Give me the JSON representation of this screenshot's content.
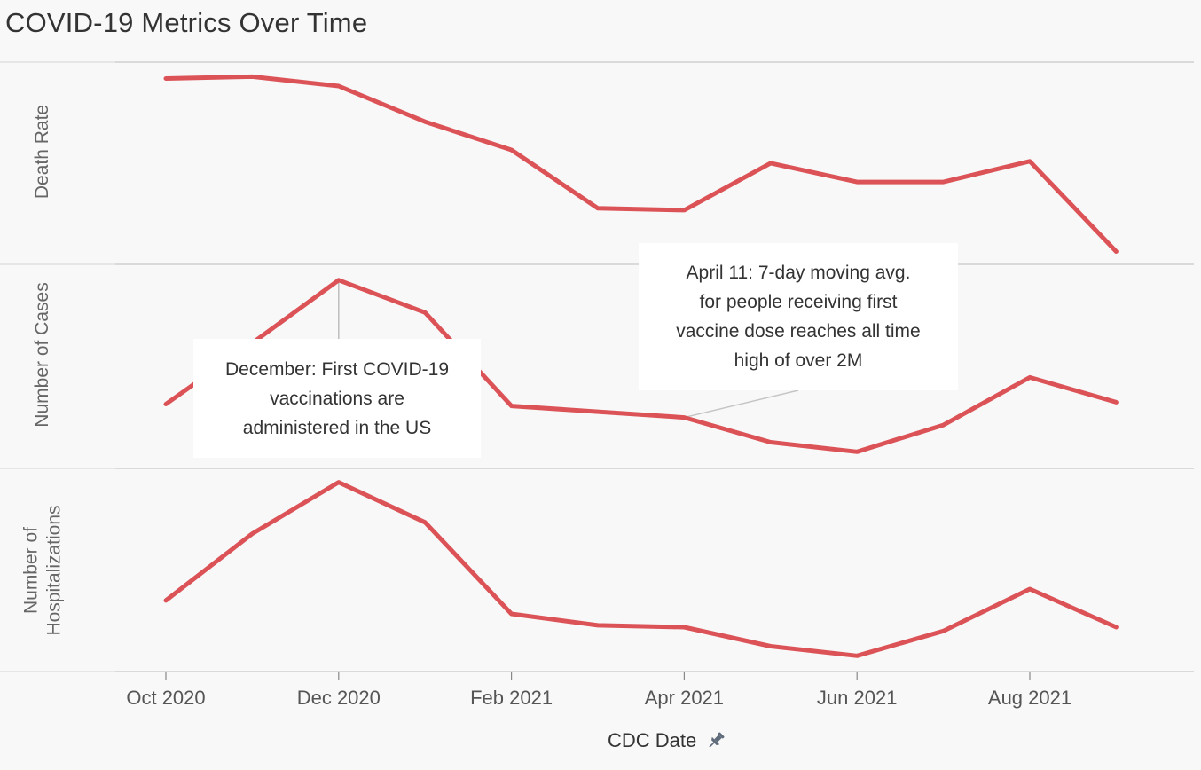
{
  "title": "COVID-19 Metrics Over Time",
  "colors": {
    "line": "#dc5357",
    "background": "#f8f8f8",
    "divider": "#c8c8c8",
    "annotation_bg": "#ffffff"
  },
  "x_axis": {
    "title": "CDC Date",
    "title_icon": "pin-icon",
    "ticks": [
      "Oct 2020",
      "Dec 2020",
      "Feb 2021",
      "Apr 2021",
      "Jun 2021",
      "Aug 2021"
    ]
  },
  "chart_data": {
    "type": "line",
    "title": "COVID-19 Metrics Over Time",
    "xlabel": "CDC Date",
    "x": [
      "2020-10",
      "2020-11",
      "2020-12",
      "2021-01",
      "2021-02",
      "2021-03",
      "2021-04",
      "2021-05",
      "2021-06",
      "2021-07",
      "2021-08",
      "2021-09"
    ],
    "panes": [
      {
        "ylabel": "Death Rate",
        "values": [
          96,
          97,
          92,
          73,
          58,
          27,
          26,
          51,
          41,
          41,
          52,
          4
        ]
      },
      {
        "ylabel": "Number of Cases",
        "values": [
          30,
          62,
          95,
          78,
          29,
          26,
          23,
          10,
          5,
          19,
          44,
          31
        ]
      },
      {
        "ylabel": "Number of\nHospitalizations",
        "values": [
          34,
          69,
          96,
          75,
          27,
          21,
          20,
          10,
          5,
          18,
          40,
          20
        ]
      }
    ],
    "y_axes_shown": false,
    "grid": false
  },
  "annotations": [
    {
      "text": "December: First COVID-19\nvaccinations are\nadministered in the US",
      "pane": 1,
      "x": "2020-12"
    },
    {
      "text": "April 11: 7-day moving avg.\nfor people receiving first\nvaccine dose reaches all time\nhigh of over 2M",
      "pane": 1,
      "x": "2021-04"
    }
  ]
}
